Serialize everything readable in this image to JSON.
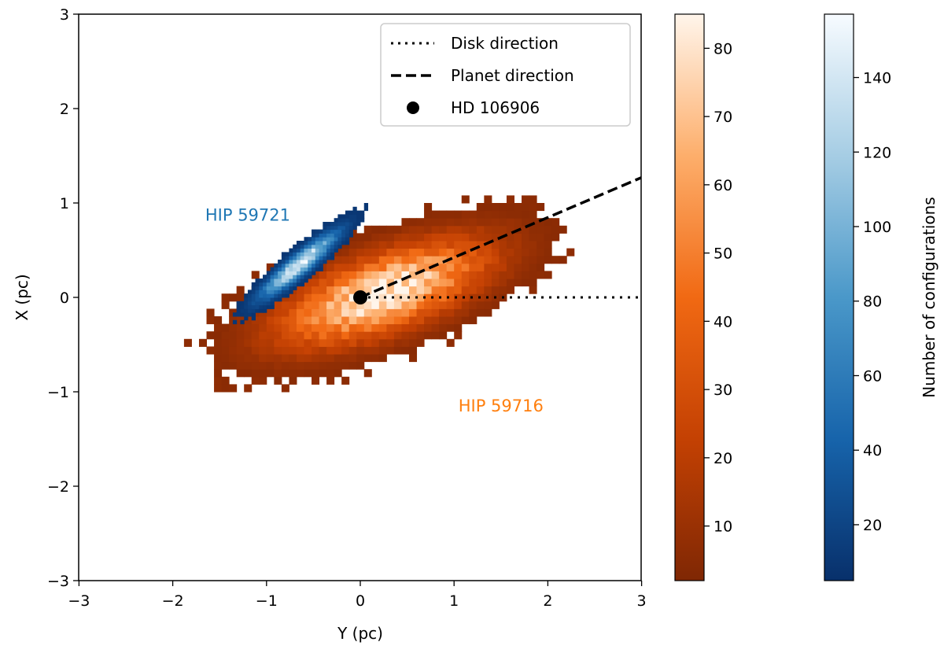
{
  "chart_data": {
    "type": "heatmap",
    "xlabel": "Y (pc)",
    "ylabel": "X (pc)",
    "xlim": [
      -3,
      3
    ],
    "ylim": [
      -3,
      3
    ],
    "xticks": [
      "−3",
      "−2",
      "−1",
      "0",
      "1",
      "2",
      "3"
    ],
    "yticks": [
      "−3",
      "−2",
      "−1",
      "0",
      "1",
      "2",
      "3"
    ],
    "grid": false,
    "legend": {
      "placement": "top-right",
      "entries": [
        "Disk direction",
        "Planet direction",
        "HD 106906"
      ]
    },
    "series": [
      {
        "name": "HIP 59716",
        "color": "#ff7f0e",
        "colormap": "Oranges_r",
        "bin_size": 0.08,
        "center": [
          0.25,
          0.05
        ],
        "angle_deg": 20,
        "sigma_major": 0.75,
        "sigma_minor": 0.26,
        "peak_count": 85,
        "label_pos": [
          1.5,
          -1.15
        ]
      },
      {
        "name": "HIP 59721",
        "color": "#1f77b4",
        "colormap": "Blues_r",
        "bin_size": 0.04,
        "center": [
          -0.65,
          0.35
        ],
        "angle_deg": 40,
        "sigma_major": 0.32,
        "sigma_minor": 0.065,
        "peak_count": 157,
        "label_pos": [
          -1.2,
          0.87
        ]
      }
    ],
    "star": {
      "name": "HD 106906",
      "position": [
        0,
        0
      ]
    },
    "disk_direction": {
      "from": [
        0,
        0
      ],
      "to": [
        3,
        0
      ]
    },
    "planet_direction": {
      "from": [
        0,
        0
      ],
      "to": [
        3,
        1.27
      ]
    },
    "colorbars": [
      {
        "range": [
          2,
          85
        ],
        "ticks": [
          "10",
          "20",
          "30",
          "40",
          "50",
          "60",
          "70",
          "80"
        ],
        "label": ""
      },
      {
        "range": [
          5,
          157
        ],
        "ticks": [
          "20",
          "40",
          "60",
          "80",
          "100",
          "120",
          "140"
        ],
        "label": "Number of configurations"
      }
    ]
  }
}
